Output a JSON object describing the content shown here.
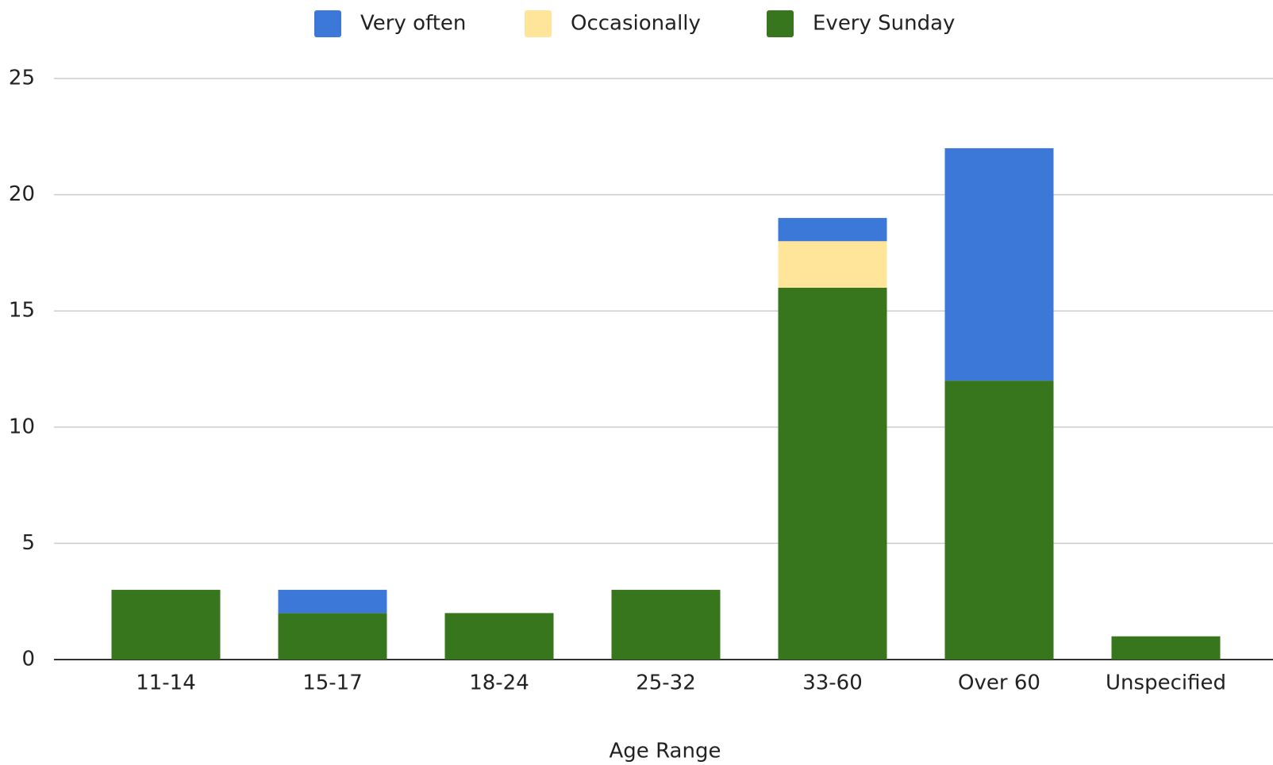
{
  "chart_data": {
    "type": "stacked_bar",
    "x_label": "Age Range",
    "categories": [
      "11-14",
      "15-17",
      "18-24",
      "25-32",
      "33-60",
      "Over 60",
      "Unspecified"
    ],
    "series": [
      {
        "name": "Every Sunday",
        "color": "#38761d",
        "values": [
          3,
          2,
          2,
          3,
          16,
          12,
          1
        ]
      },
      {
        "name": "Occasionally",
        "color": "#ffe599",
        "values": [
          0,
          0,
          0,
          0,
          2,
          0,
          0
        ]
      },
      {
        "name": "Very often",
        "color": "#3c78d8",
        "values": [
          0,
          1,
          0,
          0,
          1,
          10,
          0
        ]
      }
    ],
    "legend_order": [
      "Very often",
      "Occasionally",
      "Every Sunday"
    ],
    "ylim": [
      0,
      25
    ],
    "yticks": [
      0,
      5,
      10,
      15,
      20,
      25
    ],
    "grid": true,
    "legend": "top"
  }
}
